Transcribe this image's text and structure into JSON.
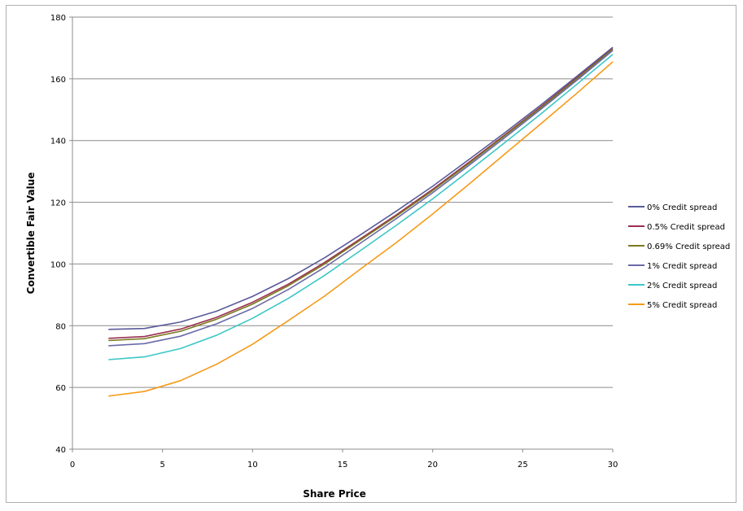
{
  "chart_data": {
    "type": "line",
    "title": "",
    "xlabel": "Share Price",
    "ylabel": "Convertible Fair Value",
    "xlim": [
      0,
      30
    ],
    "ylim": [
      40,
      180
    ],
    "xticks": [
      0,
      5,
      10,
      15,
      20,
      25,
      30
    ],
    "yticks": [
      40,
      60,
      80,
      100,
      120,
      140,
      160,
      180
    ],
    "grid": "horizontal",
    "legend": "right",
    "x": [
      2,
      4,
      6,
      8,
      10,
      12,
      14,
      16,
      18,
      20,
      22,
      24,
      26,
      28,
      30
    ],
    "series": [
      {
        "name": "0% Credit spread",
        "color": "#5a5a9a",
        "values": [
          78.8,
          79.1,
          81.2,
          84.7,
          89.5,
          95.3,
          102.0,
          109.5,
          117.2,
          125.2,
          133.8,
          142.5,
          151.5,
          160.8,
          170.2
        ]
      },
      {
        "name": "0.5% Credit spread",
        "color": "#9b2f52",
        "values": [
          75.9,
          76.5,
          78.9,
          82.7,
          87.6,
          93.5,
          100.5,
          108.2,
          116.0,
          124.2,
          132.9,
          141.8,
          150.9,
          160.3,
          169.8
        ]
      },
      {
        "name": "0.69% Credit spread",
        "color": "#7a7a1e",
        "values": [
          75.2,
          75.8,
          78.2,
          82.1,
          87.0,
          93.0,
          100.0,
          107.8,
          115.6,
          123.8,
          132.5,
          141.5,
          150.6,
          160.0,
          169.6
        ]
      },
      {
        "name": "1% Credit spread",
        "color": "#6a6aa8",
        "values": [
          73.5,
          74.2,
          76.6,
          80.6,
          85.6,
          91.8,
          98.9,
          106.8,
          114.8,
          123.1,
          131.9,
          140.9,
          150.1,
          159.5,
          169.2
        ]
      },
      {
        "name": "2% Credit spread",
        "color": "#3cc6c6",
        "values": [
          69.0,
          69.9,
          72.6,
          76.9,
          82.4,
          88.9,
          96.3,
          104.4,
          112.6,
          121.1,
          130.1,
          139.3,
          148.6,
          158.2,
          167.9
        ]
      },
      {
        "name": "5% Credit spread",
        "color": "#f59a17",
        "values": [
          57.2,
          58.7,
          62.2,
          67.5,
          74.0,
          81.7,
          89.6,
          98.4,
          107.0,
          116.2,
          125.8,
          135.6,
          145.4,
          155.3,
          165.5
        ]
      }
    ]
  }
}
